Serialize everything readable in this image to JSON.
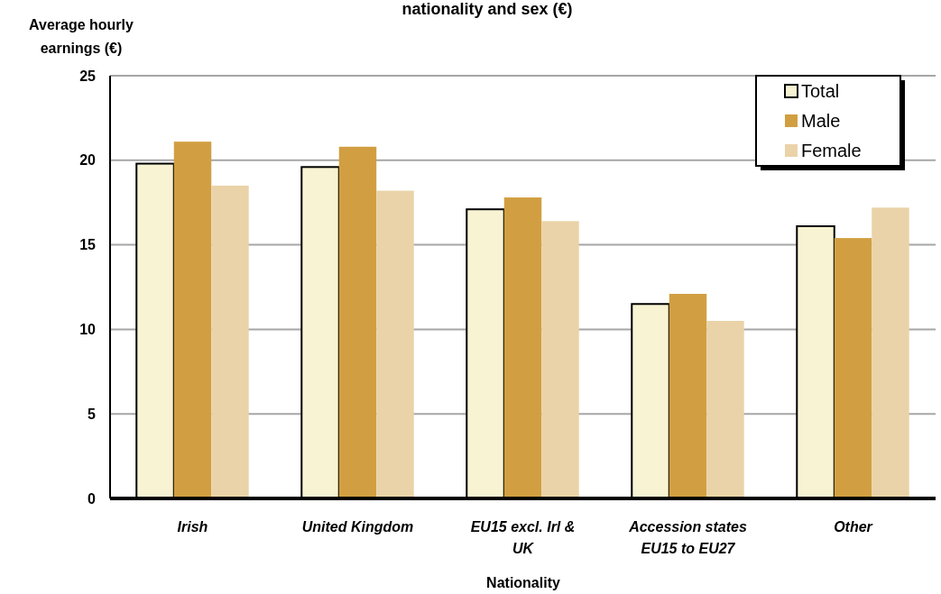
{
  "chart_data": {
    "type": "bar",
    "title": "nationality and sex (€)",
    "xlabel": "Nationality",
    "ylabel": "Average hourly earnings (€)",
    "categories": [
      "Irish",
      "United Kingdom",
      "EU15 excl. Irl & UK",
      "Accession states EU15 to EU27",
      "Other"
    ],
    "series": [
      {
        "name": "Total",
        "color": "#f8f3d2",
        "values": [
          19.8,
          19.6,
          17.1,
          11.5,
          16.1
        ]
      },
      {
        "name": "Male",
        "color": "#d19f41",
        "values": [
          21.1,
          20.8,
          17.8,
          12.1,
          15.4
        ]
      },
      {
        "name": "Female",
        "color": "#ead3a8",
        "values": [
          18.5,
          18.2,
          16.4,
          10.5,
          17.2
        ]
      }
    ],
    "ylim": [
      0,
      25
    ],
    "yticks": [
      0,
      5,
      10,
      15,
      20,
      25
    ],
    "grid": "y",
    "legend": "top right"
  }
}
